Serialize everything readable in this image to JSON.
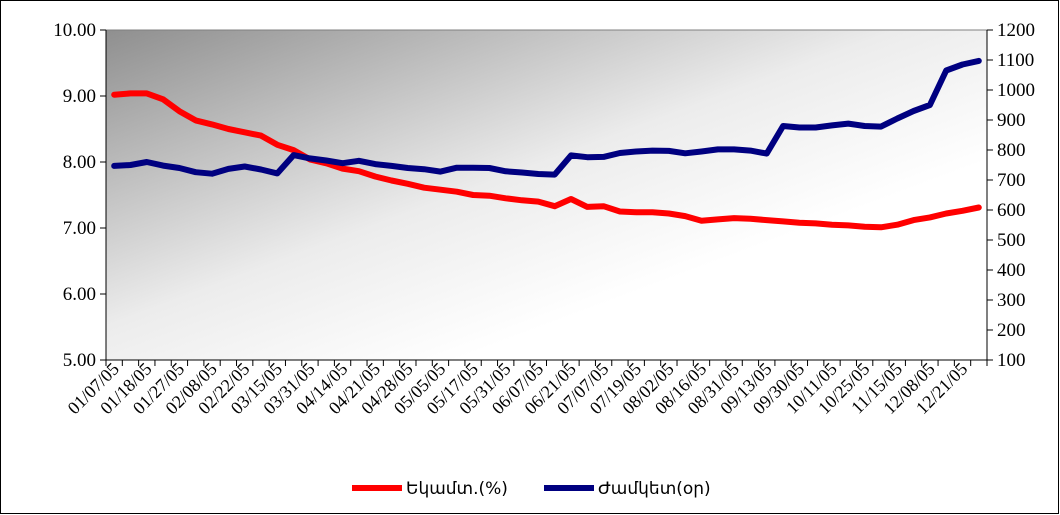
{
  "chart_data": {
    "type": "line",
    "title": "",
    "xlabel": "",
    "ylabel": "",
    "grid": false,
    "legend_position": "bottom",
    "x_tick_labels": [
      "01/07/05",
      "01/18/05",
      "01/27/05",
      "02/08/05",
      "02/22/05",
      "03/15/05",
      "03/31/05",
      "04/14/05",
      "04/21/05",
      "04/28/05",
      "05/05/05",
      "05/17/05",
      "05/31/05",
      "06/07/05",
      "06/21/05",
      "07/07/05",
      "07/19/05",
      "08/02/05",
      "08/16/05",
      "08/31/05",
      "09/13/05",
      "09/30/05",
      "10/11/05",
      "10/25/05",
      "11/15/05",
      "12/08/05",
      "12/21/05"
    ],
    "y_left": {
      "min": 5.0,
      "max": 10.0,
      "ticks": [
        "5.00",
        "6.00",
        "7.00",
        "8.00",
        "9.00",
        "10.00"
      ]
    },
    "y_right": {
      "min": 100,
      "max": 1200,
      "ticks": [
        "100",
        "200",
        "300",
        "400",
        "500",
        "600",
        "700",
        "800",
        "900",
        "1000",
        "1100",
        "1200"
      ]
    },
    "series": [
      {
        "name": "Եկամտ.(%)",
        "axis": "left",
        "color": "#ff0000",
        "values": [
          9.02,
          9.04,
          9.04,
          8.95,
          8.77,
          8.63,
          8.57,
          8.5,
          8.45,
          8.4,
          8.26,
          8.18,
          8.04,
          7.98,
          7.9,
          7.86,
          7.78,
          7.72,
          7.67,
          7.61,
          7.58,
          7.55,
          7.5,
          7.49,
          7.45,
          7.42,
          7.4,
          7.33,
          7.44,
          7.32,
          7.33,
          7.25,
          7.24,
          7.24,
          7.22,
          7.18,
          7.11,
          7.13,
          7.15,
          7.14,
          7.12,
          7.1,
          7.08,
          7.07,
          7.05,
          7.04,
          7.02,
          7.01,
          7.05,
          7.12,
          7.16,
          7.22,
          7.26,
          7.31
        ]
      },
      {
        "name": "Ժամկետ(օր)",
        "axis": "right",
        "color": "#000080",
        "values": [
          747,
          750,
          760,
          748,
          740,
          726,
          721,
          737,
          745,
          735,
          722,
          783,
          772,
          765,
          756,
          764,
          753,
          747,
          740,
          736,
          728,
          741,
          741,
          740,
          729,
          725,
          720,
          718,
          782,
          776,
          777,
          790,
          795,
          798,
          797,
          789,
          795,
          802,
          802,
          798,
          788,
          880,
          875,
          875,
          882,
          888,
          880,
          878,
          905,
          930,
          950,
          1065,
          1085,
          1097
        ]
      }
    ]
  }
}
